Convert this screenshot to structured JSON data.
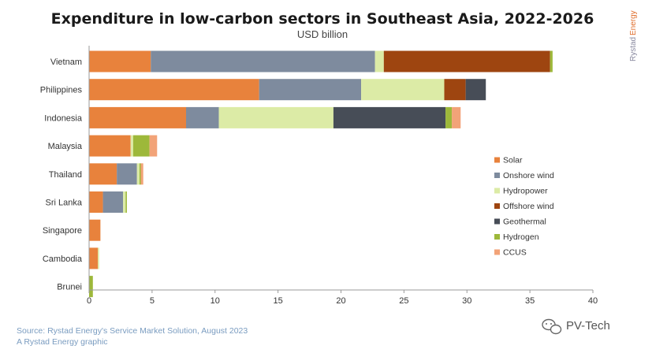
{
  "title": "Expenditure in low-carbon sectors in Southeast Asia, 2022-2026",
  "subtitle": "USD billion",
  "brand": {
    "part1": "Rystad",
    "part2": "Energy"
  },
  "footer": {
    "source": "Source: Rystad Energy's Service Market Solution, August 2023",
    "credit": "A Rystad Energy graphic"
  },
  "watermark": "PV-Tech",
  "chart_data": {
    "type": "bar",
    "orientation": "horizontal",
    "stacked": true,
    "categories": [
      "Vietnam",
      "Philippines",
      "Indonesia",
      "Malaysia",
      "Thailand",
      "Sri Lanka",
      "Singapore",
      "Cambodia",
      "Brunei"
    ],
    "series": [
      {
        "name": "Solar",
        "color": "#E8823C",
        "values": [
          4.9,
          13.5,
          7.7,
          3.3,
          2.2,
          1.1,
          0.9,
          0.7,
          0.0
        ]
      },
      {
        "name": "Onshore wind",
        "color": "#7E8B9E",
        "values": [
          17.8,
          8.1,
          2.6,
          0.0,
          1.6,
          1.6,
          0.0,
          0.0,
          0.0
        ]
      },
      {
        "name": "Hydropower",
        "color": "#DCEBA6",
        "values": [
          0.7,
          6.6,
          9.1,
          0.2,
          0.2,
          0.2,
          0.0,
          0.1,
          0.0
        ]
      },
      {
        "name": "Offshore wind",
        "color": "#9E4510",
        "values": [
          13.2,
          1.7,
          0.0,
          0.0,
          0.0,
          0.0,
          0.0,
          0.0,
          0.0
        ]
      },
      {
        "name": "Geothermal",
        "color": "#474D57",
        "values": [
          0.0,
          1.6,
          8.9,
          0.0,
          0.0,
          0.0,
          0.0,
          0.0,
          0.0
        ]
      },
      {
        "name": "Hydrogen",
        "color": "#9DB83A",
        "values": [
          0.2,
          0.0,
          0.5,
          1.3,
          0.1,
          0.1,
          0.0,
          0.0,
          0.3
        ]
      },
      {
        "name": "CCUS",
        "color": "#F2A378",
        "values": [
          0.0,
          0.0,
          0.7,
          0.6,
          0.2,
          0.0,
          0.0,
          0.0,
          0.0
        ]
      }
    ],
    "xlim": [
      0,
      40
    ],
    "xticks": [
      "0",
      "5",
      "10",
      "15",
      "20",
      "25",
      "30",
      "35",
      "40"
    ],
    "grid": false,
    "legend_position": "right"
  }
}
